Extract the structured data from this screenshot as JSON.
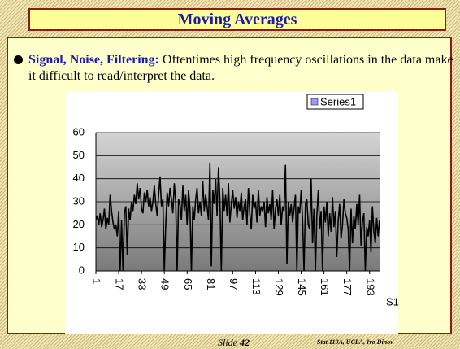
{
  "title": "Moving Averages",
  "bullet": {
    "heading": "Signal, Noise, Filtering:",
    "text": "Oftentimes high frequency oscillations in the data make it difficult to read/interpret the data."
  },
  "footer": {
    "slide_label": "Slide",
    "slide_number": 42,
    "credit": "Stat 110A, UCLA, Ivo Dinov"
  },
  "chart_data": {
    "type": "line",
    "series_axis_label": "S1",
    "legend_color": "#9999ff",
    "x": [
      1,
      2,
      3,
      4,
      5,
      6,
      7,
      8,
      9,
      10,
      11,
      12,
      13,
      14,
      15,
      16,
      17,
      18,
      19,
      20,
      21,
      22,
      23,
      24,
      25,
      26,
      27,
      28,
      29,
      30,
      31,
      32,
      33,
      34,
      35,
      36,
      37,
      38,
      39,
      40,
      41,
      42,
      43,
      44,
      45,
      46,
      47,
      48,
      49,
      50,
      51,
      52,
      53,
      54,
      55,
      56,
      57,
      58,
      59,
      60,
      61,
      62,
      63,
      64,
      65,
      66,
      67,
      68,
      69,
      70,
      71,
      72,
      73,
      74,
      75,
      76,
      77,
      78,
      79,
      80,
      81,
      82,
      83,
      84,
      85,
      86,
      87,
      88,
      89,
      90,
      91,
      92,
      93,
      94,
      95,
      96,
      97,
      98,
      99,
      100,
      101,
      102,
      103,
      104,
      105,
      106,
      107,
      108,
      109,
      110,
      111,
      112,
      113,
      114,
      115,
      116,
      117,
      118,
      119,
      120,
      121,
      122,
      123,
      124,
      125,
      126,
      127,
      128,
      129,
      130,
      131,
      132,
      133,
      134,
      135,
      136,
      137,
      138,
      139,
      140,
      141,
      142,
      143,
      144,
      145,
      146,
      147,
      148,
      149,
      150,
      151,
      152,
      153,
      154,
      155,
      156,
      157,
      158,
      159,
      160,
      161,
      162,
      163,
      164,
      165,
      166,
      167,
      168,
      169,
      170,
      171,
      172,
      173,
      174,
      175,
      176,
      177,
      178,
      179,
      180,
      181,
      182,
      183,
      184,
      185,
      186,
      187,
      188,
      189,
      190,
      191,
      192,
      193,
      194,
      195,
      196,
      197,
      198,
      199,
      200
    ],
    "series": [
      {
        "name": "Series1",
        "color": "#000000",
        "values": [
          22,
          24,
          20,
          25,
          19,
          22,
          27,
          18,
          23,
          20,
          33,
          26,
          21,
          18,
          20,
          15,
          26,
          0,
          22,
          0,
          25,
          28,
          7,
          27,
          22,
          30,
          26,
          33,
          29,
          38,
          31,
          36,
          27,
          25,
          34,
          30,
          35,
          28,
          32,
          26,
          30,
          37,
          29,
          24,
          33,
          41,
          28,
          31,
          0,
          20,
          34,
          28,
          36,
          31,
          25,
          38,
          30,
          0,
          31,
          29,
          22,
          37,
          26,
          33,
          20,
          35,
          27,
          0,
          28,
          22,
          31,
          36,
          25,
          30,
          24,
          39,
          26,
          33,
          28,
          22,
          47,
          2,
          35,
          29,
          40,
          24,
          45,
          31,
          0,
          36,
          26,
          33,
          24,
          38,
          21,
          29,
          35,
          27,
          32,
          23,
          30,
          26,
          34,
          22,
          28,
          31,
          20,
          36,
          25,
          18,
          33,
          27,
          30,
          21,
          35,
          24,
          28,
          26,
          30,
          19,
          32,
          25,
          29,
          22,
          35,
          18,
          27,
          31,
          24,
          33,
          20,
          28,
          26,
          46,
          3,
          30,
          24,
          29,
          21,
          27,
          33,
          0,
          28,
          25,
          35,
          22,
          0,
          29,
          31,
          20,
          18,
          40,
          12,
          27,
          0,
          24,
          35,
          18,
          26,
          0,
          28,
          21,
          30,
          15,
          25,
          17,
          32,
          19,
          26,
          6,
          22,
          29,
          14,
          20,
          31,
          25,
          23,
          18,
          0,
          27,
          12,
          24,
          18,
          29,
          20,
          33,
          11,
          21,
          25,
          0,
          19,
          15,
          22,
          8,
          28,
          17,
          12,
          23,
          15,
          22
        ]
      }
    ],
    "xlim": [
      1,
      200
    ],
    "xticks": [
      1,
      17,
      33,
      49,
      65,
      81,
      97,
      113,
      129,
      145,
      161,
      177,
      193
    ],
    "ylim": [
      0,
      60
    ],
    "yticks": [
      0,
      10,
      20,
      30,
      40,
      50,
      60
    ],
    "grid": true
  }
}
